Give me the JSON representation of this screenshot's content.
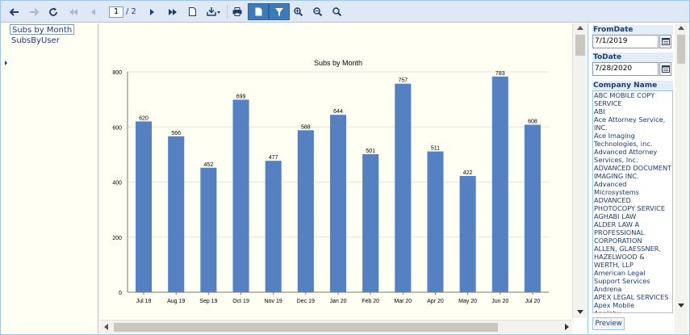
{
  "toolbar": {
    "page_current": "1",
    "page_total": "/ 2",
    "icons": [
      "back-icon",
      "forward-icon",
      "refresh-icon",
      "first-page-icon",
      "previous-page-icon",
      "next-page-icon",
      "last-page-icon",
      "page-setup-icon",
      "export-icon",
      "print-icon",
      "document-map-icon",
      "parameters-filter-icon",
      "zoom-in-icon",
      "zoom-out-icon",
      "zoom-fit-icon"
    ]
  },
  "docmap": {
    "items": [
      "Subs by Month",
      "SubsByUser"
    ]
  },
  "chart_data": {
    "type": "bar",
    "title": "Subs by Month",
    "xlabel": "",
    "ylabel": "",
    "ylim": [
      0,
      800
    ],
    "yticks": [
      0,
      200,
      400,
      600,
      800
    ],
    "grid": true,
    "categories": [
      "Jul 19",
      "Aug 19",
      "Sep 19",
      "Oct 19",
      "Nov 19",
      "Dec 19",
      "Jan 20",
      "Feb 20",
      "Mar 20",
      "Apr 20",
      "May 20",
      "Jun 20",
      "Jul 20"
    ],
    "values": [
      620,
      566,
      452,
      699,
      477,
      588,
      644,
      501,
      757,
      511,
      422,
      783,
      608
    ],
    "bar_color": "#5580c2"
  },
  "params": {
    "from_label": "FromDate",
    "from_value": "7/1/2019",
    "to_label": "ToDate",
    "to_value": "7/28/2020",
    "company_label": "Company Name",
    "companies": [
      "ABC MOBILE COPY",
      "SERVICE",
      "ABI",
      "Ace Attorney Service,",
      "INC.",
      "Ace Imaging",
      "Technologies, inc.",
      "Advanced Attorney",
      "Services, Inc.",
      "ADVANCED DOCUMENT",
      "IMAGING INC.",
      "Advanced",
      "Microsystems",
      "ADVANCED",
      "PHOTOCOPY SERVICE",
      "AGHABI LAW",
      "ALDER LAW A",
      "PROFESSIONAL",
      "CORPORATION",
      "ALLEN, GLAESSNER,",
      "HAZELWOOD &",
      "WERTH, LLP",
      "American Legal",
      "Support Services",
      "Andrena",
      "APEX LEGAL SERVICES",
      "Apex Mobile",
      "Appleby"
    ],
    "preview_label": "Preview"
  }
}
